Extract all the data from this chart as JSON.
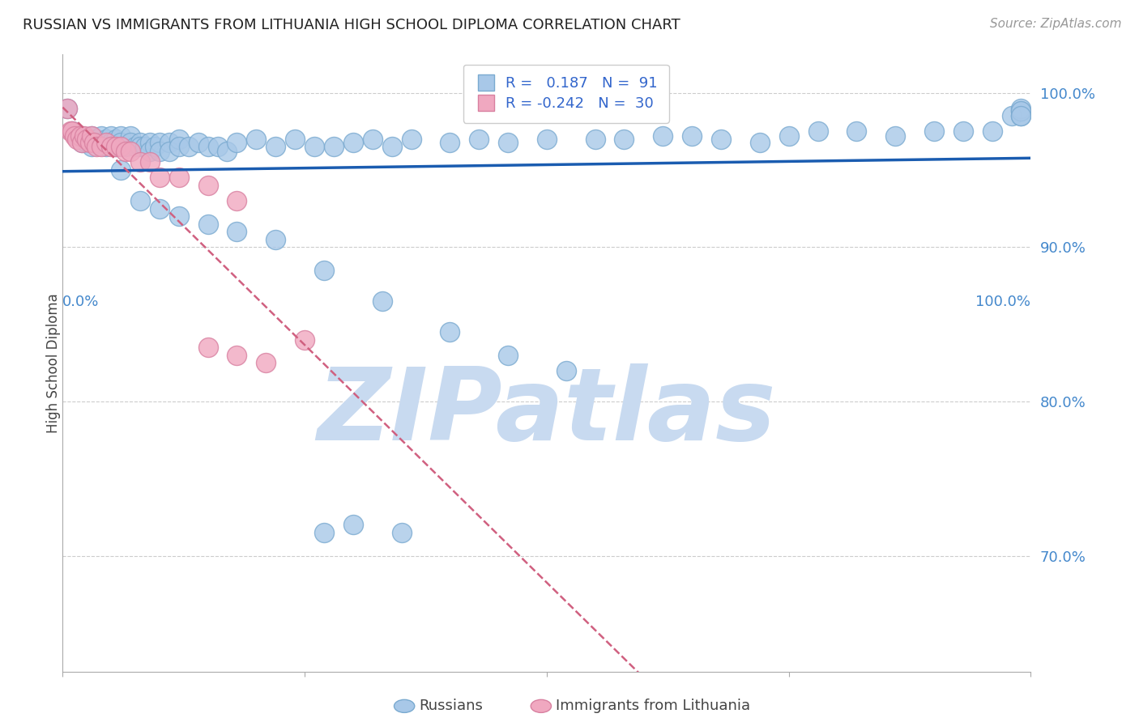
{
  "title": "RUSSIAN VS IMMIGRANTS FROM LITHUANIA HIGH SCHOOL DIPLOMA CORRELATION CHART",
  "source": "Source: ZipAtlas.com",
  "ylabel": "High School Diploma",
  "ytick_labels": [
    "70.0%",
    "80.0%",
    "90.0%",
    "100.0%"
  ],
  "ytick_values": [
    0.7,
    0.8,
    0.9,
    1.0
  ],
  "xlim": [
    0.0,
    1.0
  ],
  "ylim": [
    0.625,
    1.025
  ],
  "blue_color": "#a8c8e8",
  "blue_edge_color": "#7aaad0",
  "pink_color": "#f0a8c0",
  "pink_edge_color": "#d880a0",
  "blue_trend_color": "#1a5cb0",
  "pink_trend_color": "#d06080",
  "watermark": "ZIPatlas",
  "watermark_color": "#c8daf0",
  "blue_R": 0.187,
  "blue_N": 91,
  "pink_R": -0.242,
  "pink_N": 30,
  "blue_scatter_x": [
    0.005,
    0.01,
    0.015,
    0.02,
    0.02,
    0.025,
    0.025,
    0.03,
    0.03,
    0.03,
    0.035,
    0.035,
    0.04,
    0.04,
    0.045,
    0.045,
    0.05,
    0.05,
    0.055,
    0.055,
    0.06,
    0.06,
    0.065,
    0.07,
    0.07,
    0.075,
    0.08,
    0.08,
    0.085,
    0.09,
    0.09,
    0.095,
    0.1,
    0.1,
    0.11,
    0.11,
    0.12,
    0.12,
    0.13,
    0.14,
    0.15,
    0.16,
    0.17,
    0.18,
    0.2,
    0.22,
    0.24,
    0.26,
    0.28,
    0.3,
    0.32,
    0.34,
    0.36,
    0.4,
    0.43,
    0.46,
    0.5,
    0.55,
    0.58,
    0.62,
    0.65,
    0.68,
    0.72,
    0.75,
    0.78,
    0.82,
    0.86,
    0.9,
    0.93,
    0.96,
    0.98,
    0.99,
    0.99,
    0.99,
    0.99,
    0.99,
    0.06,
    0.08,
    0.1,
    0.12,
    0.15,
    0.18,
    0.22,
    0.27,
    0.33,
    0.4,
    0.46,
    0.52,
    0.27,
    0.3,
    0.35
  ],
  "blue_scatter_y": [
    0.99,
    0.975,
    0.972,
    0.968,
    0.972,
    0.97,
    0.968,
    0.972,
    0.968,
    0.965,
    0.97,
    0.968,
    0.972,
    0.968,
    0.97,
    0.965,
    0.972,
    0.968,
    0.97,
    0.965,
    0.972,
    0.968,
    0.965,
    0.972,
    0.968,
    0.965,
    0.968,
    0.965,
    0.965,
    0.968,
    0.962,
    0.965,
    0.968,
    0.962,
    0.968,
    0.962,
    0.97,
    0.965,
    0.965,
    0.968,
    0.965,
    0.965,
    0.962,
    0.968,
    0.97,
    0.965,
    0.97,
    0.965,
    0.965,
    0.968,
    0.97,
    0.965,
    0.97,
    0.968,
    0.97,
    0.968,
    0.97,
    0.97,
    0.97,
    0.972,
    0.972,
    0.97,
    0.968,
    0.972,
    0.975,
    0.975,
    0.972,
    0.975,
    0.975,
    0.975,
    0.985,
    0.985,
    0.988,
    0.99,
    0.988,
    0.985,
    0.95,
    0.93,
    0.925,
    0.92,
    0.915,
    0.91,
    0.905,
    0.885,
    0.865,
    0.845,
    0.83,
    0.82,
    0.715,
    0.72,
    0.715
  ],
  "pink_scatter_x": [
    0.005,
    0.008,
    0.01,
    0.012,
    0.015,
    0.018,
    0.02,
    0.022,
    0.025,
    0.028,
    0.03,
    0.032,
    0.035,
    0.04,
    0.045,
    0.05,
    0.055,
    0.06,
    0.065,
    0.07,
    0.08,
    0.09,
    0.1,
    0.12,
    0.15,
    0.18,
    0.21,
    0.25,
    0.15,
    0.18
  ],
  "pink_scatter_y": [
    0.99,
    0.975,
    0.975,
    0.972,
    0.97,
    0.972,
    0.968,
    0.972,
    0.97,
    0.968,
    0.972,
    0.968,
    0.965,
    0.965,
    0.968,
    0.965,
    0.965,
    0.965,
    0.962,
    0.962,
    0.955,
    0.955,
    0.945,
    0.945,
    0.94,
    0.93,
    0.825,
    0.84,
    0.835,
    0.83
  ]
}
